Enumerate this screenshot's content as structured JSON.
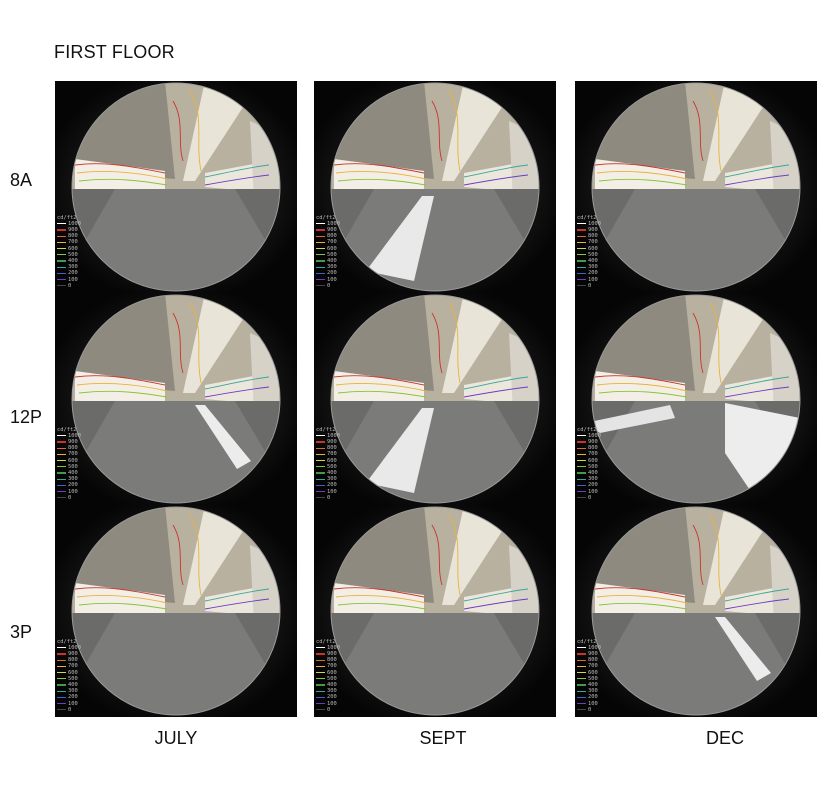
{
  "title": "FIRST FLOOR",
  "rows": [
    "8A",
    "12P",
    "3P"
  ],
  "columns": [
    "JULY",
    "SEPT",
    "DEC"
  ],
  "legend": {
    "unit": "cd/ft2",
    "entries": [
      {
        "value": "1000",
        "color": "#ffffff"
      },
      {
        "value": "900",
        "color": "#c8342b"
      },
      {
        "value": "800",
        "color": "#e0672a"
      },
      {
        "value": "700",
        "color": "#e8b23a"
      },
      {
        "value": "600",
        "color": "#cfd845"
      },
      {
        "value": "500",
        "color": "#86c43c"
      },
      {
        "value": "400",
        "color": "#3f9b4a"
      },
      {
        "value": "300",
        "color": "#39a69a"
      },
      {
        "value": "200",
        "color": "#3a62c9"
      },
      {
        "value": "100",
        "color": "#6c3bc2"
      },
      {
        "value": "0",
        "color": "#444444"
      }
    ]
  },
  "panels": [
    {
      "row": "8A",
      "column": "JULY",
      "sun_patch": "none"
    },
    {
      "row": "8A",
      "column": "SEPT",
      "sun_patch": "left-floor"
    },
    {
      "row": "8A",
      "column": "DEC",
      "sun_patch": "none"
    },
    {
      "row": "12P",
      "column": "JULY",
      "sun_patch": "right-floor"
    },
    {
      "row": "12P",
      "column": "SEPT",
      "sun_patch": "left-floor"
    },
    {
      "row": "12P",
      "column": "DEC",
      "sun_patch": "wide-floor"
    },
    {
      "row": "3P",
      "column": "JULY",
      "sun_patch": "none"
    },
    {
      "row": "3P",
      "column": "SEPT",
      "sun_patch": "none"
    },
    {
      "row": "3P",
      "column": "DEC",
      "sun_patch": "right-floor"
    }
  ]
}
